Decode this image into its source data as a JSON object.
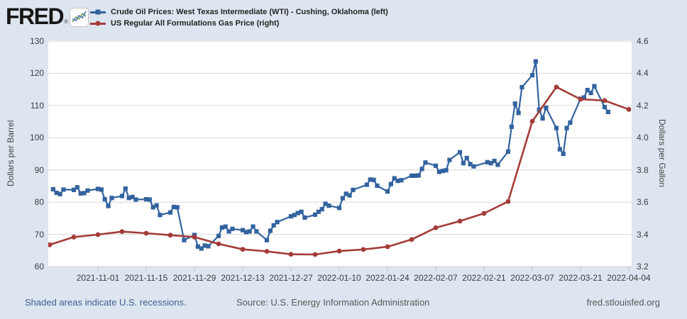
{
  "colors": {
    "background": "#dde6f0",
    "plot_background": "#ffffff",
    "gridline": "#d7d7d7",
    "wti_blue": "#33639f",
    "gas_red": "#a33c38",
    "tick_text": "#3c3c3c",
    "footer_link_blue": "#3f5e8f"
  },
  "header": {
    "logo_text": "FRED",
    "logo_registered": "®",
    "legend": [
      {
        "label": "Crude Oil Prices: West Texas Intermediate (WTI) - Cushing, Oklahoma (left)",
        "color": "#33639f",
        "marker": "square"
      },
      {
        "label": "US Regular All Formulations Gas Price (right)",
        "color": "#a33c38",
        "marker": "circle"
      }
    ]
  },
  "footer": {
    "recession_note": "Shaded areas indicate U.S. recessions.",
    "source": "Source: U.S. Energy Information Administration",
    "site": "fred.stlouisfed.org"
  },
  "chart_data": {
    "type": "line",
    "legend_position": "top-left",
    "grid": "horizontal-only",
    "left_axis": {
      "label": "Dollars per Barrel",
      "range": [
        60,
        130
      ],
      "ticks": [
        "60",
        "70",
        "80",
        "90",
        "100",
        "110",
        "120",
        "130"
      ]
    },
    "right_axis": {
      "label": "Dollars per Gallon",
      "range": [
        3.2,
        4.6
      ],
      "ticks": [
        "3.2",
        "3.4",
        "3.6",
        "3.8",
        "4.0",
        "4.2",
        "4.4",
        "4.6"
      ]
    },
    "x_axis": {
      "tick_labels": [
        "2021-11-01",
        "2021-11-15",
        "2021-11-29",
        "2021-12-13",
        "2021-12-27",
        "2022-01-10",
        "2022-01-24",
        "2022-02-07",
        "2022-02-21",
        "2022-03-07",
        "2022-03-21",
        "2022-04-04"
      ],
      "start_date": "2021-10-18",
      "end_date": "2022-04-04"
    },
    "series": [
      {
        "name": "Crude Oil Prices: West Texas Intermediate (WTI) - Cushing, Oklahoma",
        "axis": "left",
        "color": "#33639f",
        "marker": "square",
        "frequency": "daily",
        "points": [
          [
            "2021-10-19",
            84.0
          ],
          [
            "2021-10-20",
            82.9
          ],
          [
            "2021-10-21",
            82.5
          ],
          [
            "2021-10-22",
            83.9
          ],
          [
            "2021-10-25",
            83.8
          ],
          [
            "2021-10-26",
            84.6
          ],
          [
            "2021-10-27",
            82.7
          ],
          [
            "2021-10-28",
            82.8
          ],
          [
            "2021-10-29",
            83.6
          ],
          [
            "2021-11-01",
            84.1
          ],
          [
            "2021-11-02",
            83.9
          ],
          [
            "2021-11-03",
            80.9
          ],
          [
            "2021-11-04",
            78.8
          ],
          [
            "2021-11-05",
            81.3
          ],
          [
            "2021-11-08",
            81.9
          ],
          [
            "2021-11-09",
            84.2
          ],
          [
            "2021-11-10",
            81.3
          ],
          [
            "2021-11-11",
            81.6
          ],
          [
            "2021-11-12",
            80.8
          ],
          [
            "2021-11-15",
            80.9
          ],
          [
            "2021-11-16",
            80.8
          ],
          [
            "2021-11-17",
            78.4
          ],
          [
            "2021-11-18",
            79.0
          ],
          [
            "2021-11-19",
            76.0
          ],
          [
            "2021-11-22",
            76.8
          ],
          [
            "2021-11-23",
            78.5
          ],
          [
            "2021-11-24",
            78.4
          ],
          [
            "2021-11-26",
            68.2
          ],
          [
            "2021-11-29",
            69.8
          ],
          [
            "2021-11-30",
            66.2
          ],
          [
            "2021-12-01",
            65.6
          ],
          [
            "2021-12-02",
            66.5
          ],
          [
            "2021-12-03",
            66.3
          ],
          [
            "2021-12-06",
            69.5
          ],
          [
            "2021-12-07",
            72.1
          ],
          [
            "2021-12-08",
            72.4
          ],
          [
            "2021-12-09",
            70.9
          ],
          [
            "2021-12-10",
            71.7
          ],
          [
            "2021-12-13",
            71.3
          ],
          [
            "2021-12-14",
            70.7
          ],
          [
            "2021-12-15",
            70.9
          ],
          [
            "2021-12-16",
            72.4
          ],
          [
            "2021-12-17",
            70.9
          ],
          [
            "2021-12-20",
            68.2
          ],
          [
            "2021-12-21",
            71.1
          ],
          [
            "2021-12-22",
            72.8
          ],
          [
            "2021-12-23",
            73.8
          ],
          [
            "2021-12-27",
            75.6
          ],
          [
            "2021-12-28",
            76.0
          ],
          [
            "2021-12-29",
            76.6
          ],
          [
            "2021-12-30",
            77.0
          ],
          [
            "2021-12-31",
            75.2
          ],
          [
            "2022-01-03",
            76.1
          ],
          [
            "2022-01-04",
            77.0
          ],
          [
            "2022-01-05",
            77.8
          ],
          [
            "2022-01-06",
            79.5
          ],
          [
            "2022-01-07",
            78.9
          ],
          [
            "2022-01-10",
            78.2
          ],
          [
            "2022-01-11",
            81.2
          ],
          [
            "2022-01-12",
            82.6
          ],
          [
            "2022-01-13",
            82.1
          ],
          [
            "2022-01-14",
            83.8
          ],
          [
            "2022-01-18",
            85.4
          ],
          [
            "2022-01-19",
            87.0
          ],
          [
            "2022-01-20",
            86.9
          ],
          [
            "2022-01-21",
            85.1
          ],
          [
            "2022-01-24",
            83.3
          ],
          [
            "2022-01-25",
            85.6
          ],
          [
            "2022-01-26",
            87.4
          ],
          [
            "2022-01-27",
            86.6
          ],
          [
            "2022-01-28",
            86.8
          ],
          [
            "2022-01-31",
            88.2
          ],
          [
            "2022-02-01",
            88.2
          ],
          [
            "2022-02-02",
            88.3
          ],
          [
            "2022-02-03",
            90.3
          ],
          [
            "2022-02-04",
            92.3
          ],
          [
            "2022-02-07",
            91.3
          ],
          [
            "2022-02-08",
            89.4
          ],
          [
            "2022-02-09",
            89.7
          ],
          [
            "2022-02-10",
            89.9
          ],
          [
            "2022-02-11",
            93.1
          ],
          [
            "2022-02-14",
            95.5
          ],
          [
            "2022-02-15",
            92.1
          ],
          [
            "2022-02-16",
            93.7
          ],
          [
            "2022-02-17",
            91.8
          ],
          [
            "2022-02-18",
            91.1
          ],
          [
            "2022-02-22",
            92.4
          ],
          [
            "2022-02-23",
            92.1
          ],
          [
            "2022-02-24",
            92.8
          ],
          [
            "2022-02-25",
            91.6
          ],
          [
            "2022-02-28",
            95.7
          ],
          [
            "2022-03-01",
            103.4
          ],
          [
            "2022-03-02",
            110.6
          ],
          [
            "2022-03-03",
            107.7
          ],
          [
            "2022-03-04",
            115.7
          ],
          [
            "2022-03-07",
            119.4
          ],
          [
            "2022-03-08",
            123.7
          ],
          [
            "2022-03-09",
            108.7
          ],
          [
            "2022-03-10",
            106.0
          ],
          [
            "2022-03-11",
            109.3
          ],
          [
            "2022-03-14",
            103.0
          ],
          [
            "2022-03-15",
            96.4
          ],
          [
            "2022-03-16",
            95.0
          ],
          [
            "2022-03-17",
            103.0
          ],
          [
            "2022-03-18",
            104.7
          ],
          [
            "2022-03-21",
            112.1
          ],
          [
            "2022-03-22",
            112.5
          ],
          [
            "2022-03-23",
            114.8
          ],
          [
            "2022-03-24",
            113.9
          ],
          [
            "2022-03-25",
            116.0
          ],
          [
            "2022-03-28",
            109.5
          ],
          [
            "2022-03-29",
            108.0
          ]
        ]
      },
      {
        "name": "US Regular All Formulations Gas Price",
        "axis": "right",
        "color": "#a33c38",
        "marker": "circle",
        "frequency": "weekly",
        "points": [
          [
            "2021-10-18",
            3.335
          ],
          [
            "2021-10-25",
            3.383
          ],
          [
            "2021-11-01",
            3.398
          ],
          [
            "2021-11-08",
            3.417
          ],
          [
            "2021-11-15",
            3.407
          ],
          [
            "2021-11-22",
            3.395
          ],
          [
            "2021-11-29",
            3.383
          ],
          [
            "2021-12-06",
            3.341
          ],
          [
            "2021-12-13",
            3.307
          ],
          [
            "2021-12-20",
            3.294
          ],
          [
            "2021-12-27",
            3.276
          ],
          [
            "2022-01-03",
            3.275
          ],
          [
            "2022-01-10",
            3.296
          ],
          [
            "2022-01-17",
            3.306
          ],
          [
            "2022-01-24",
            3.323
          ],
          [
            "2022-01-31",
            3.368
          ],
          [
            "2022-02-07",
            3.441
          ],
          [
            "2022-02-14",
            3.482
          ],
          [
            "2022-02-21",
            3.53
          ],
          [
            "2022-02-28",
            3.604
          ],
          [
            "2022-03-07",
            4.102
          ],
          [
            "2022-03-14",
            4.315
          ],
          [
            "2022-03-21",
            4.239
          ],
          [
            "2022-03-28",
            4.231
          ],
          [
            "2022-04-04",
            4.176
          ]
        ]
      }
    ]
  }
}
